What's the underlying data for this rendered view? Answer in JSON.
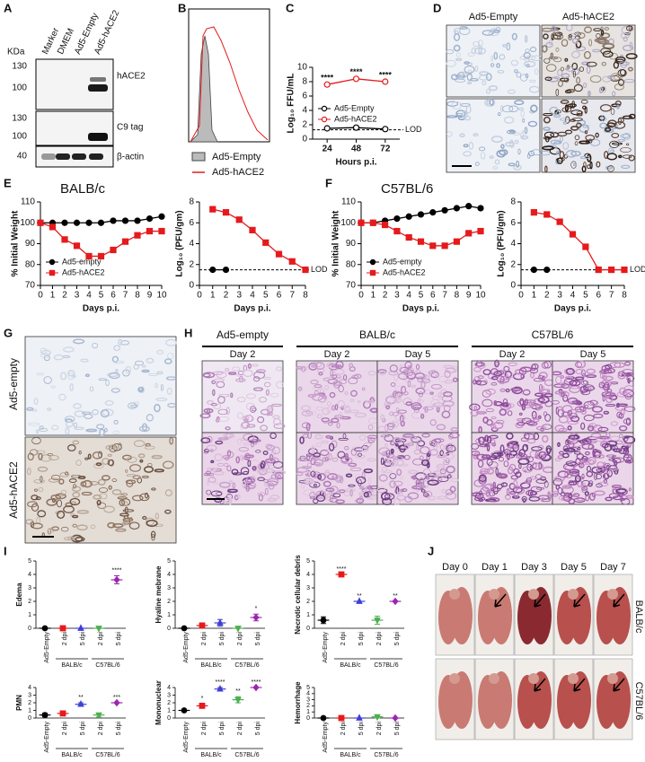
{
  "panel_letters": [
    "A",
    "B",
    "C",
    "D",
    "E",
    "F",
    "G",
    "H",
    "I",
    "J"
  ],
  "panels": {
    "A": {
      "unit": "KDa",
      "lanes": [
        "Marker",
        "DMEM",
        "Ad5-Empty",
        "Ad5-hACE2"
      ],
      "blots": [
        {
          "label": "hACE2",
          "markers": [
            130,
            100
          ]
        },
        {
          "label": "C9 tag",
          "markers": [
            130,
            100
          ]
        },
        {
          "label": "β-actin",
          "markers": [
            40
          ]
        }
      ]
    },
    "B": {
      "legend": [
        "Ad5-Empty",
        "Ad5-hACE2"
      ]
    },
    "D": {
      "columns": [
        "Ad5-Empty",
        "Ad5-hACE2"
      ]
    },
    "G": {
      "rows": [
        "Ad5-empty",
        "Ad5-hACE2"
      ]
    },
    "H": {
      "groups": [
        "Ad5-empty",
        "BALB/c",
        "C57BL/6"
      ],
      "days": [
        "Day 2",
        "Day 2",
        "Day 5",
        "Day 2",
        "Day 5"
      ]
    },
    "J": {
      "days": [
        "Day 0",
        "Day 1",
        "Day 3",
        "Day 5",
        "Day 7"
      ],
      "rows": [
        "BALB/c",
        "C57BL/6"
      ]
    }
  },
  "chart_data": [
    {
      "type": "line",
      "ylabel": "Log₁₀ FFU/mL",
      "xlabel": "Hours p.i.",
      "x": [
        24,
        48,
        72
      ],
      "xlim": [
        12,
        84
      ],
      "xticks": [
        24,
        48,
        72
      ],
      "ylim": [
        0,
        10
      ],
      "yticks": [
        0,
        2,
        4,
        6,
        8,
        10
      ],
      "legend": "center-left",
      "series": [
        {
          "name": "Ad5-Empty",
          "color": "#000000",
          "marker": "open-circle",
          "values": [
            1.5,
            1.6,
            1.4
          ]
        },
        {
          "name": "Ad5-hACE2",
          "color": "#e41a1c",
          "marker": "open-circle",
          "values": [
            7.6,
            8.4,
            8.0
          ],
          "significance": [
            "****",
            "****",
            "****"
          ]
        }
      ],
      "reference_line": {
        "value": 1.3,
        "label": "LOD"
      }
    },
    {
      "type": "line",
      "title": "BALB/c",
      "ylabel": "% Initial Weight",
      "xlabel": "Days p.i.",
      "x": [
        0,
        1,
        2,
        3,
        4,
        5,
        6,
        7,
        8,
        9,
        10
      ],
      "xlim": [
        0,
        10
      ],
      "xticks": [
        0,
        1,
        2,
        3,
        4,
        5,
        6,
        7,
        8,
        9,
        10
      ],
      "ylim": [
        70,
        110
      ],
      "yticks": [
        70,
        80,
        90,
        100,
        110
      ],
      "legend": "lower-left",
      "series": [
        {
          "name": "Ad5-empty",
          "color": "#000000",
          "marker": "circle",
          "values": [
            100,
            100,
            100,
            100,
            100,
            100,
            101,
            101,
            101,
            102,
            103
          ]
        },
        {
          "name": "Ad5-hACE2",
          "color": "#e41a1c",
          "marker": "square",
          "values": [
            100,
            98,
            92,
            89,
            84,
            84,
            87,
            91,
            94,
            96,
            96
          ]
        }
      ]
    },
    {
      "type": "line",
      "ylabel": "Log₁₀ (PFU/gm)",
      "xlabel": "Days p.i.",
      "xlim": [
        0,
        8
      ],
      "xticks": [
        0,
        1,
        2,
        3,
        4,
        5,
        6,
        7,
        8
      ],
      "ylim": [
        0,
        8
      ],
      "yticks": [
        0,
        2,
        4,
        6,
        8
      ],
      "series": [
        {
          "color": "#000000",
          "marker": "circle",
          "x": [
            1,
            2
          ],
          "values": [
            1.5,
            1.5
          ]
        },
        {
          "color": "#e41a1c",
          "marker": "square",
          "x": [
            1,
            2,
            3,
            4,
            5,
            6,
            7,
            8
          ],
          "values": [
            7.3,
            7.0,
            6.3,
            5.3,
            4.1,
            3.0,
            2.3,
            1.5
          ]
        }
      ],
      "reference_line": {
        "value": 1.5,
        "label": "LOD"
      }
    },
    {
      "type": "line",
      "title": "C57BL/6",
      "ylabel": "% Initial Weight",
      "xlabel": "Days p.i.",
      "x": [
        0,
        1,
        2,
        3,
        4,
        5,
        6,
        7,
        8,
        9,
        10
      ],
      "xlim": [
        0,
        10
      ],
      "xticks": [
        0,
        1,
        2,
        3,
        4,
        5,
        6,
        7,
        8,
        9,
        10
      ],
      "ylim": [
        70,
        110
      ],
      "yticks": [
        70,
        80,
        90,
        100,
        110
      ],
      "legend": "lower-left",
      "series": [
        {
          "name": "Ad5-empty",
          "color": "#000000",
          "marker": "circle",
          "values": [
            100,
            100,
            101,
            102,
            103,
            104,
            105,
            106,
            107,
            108,
            107
          ]
        },
        {
          "name": "Ad5-hACE2",
          "color": "#e41a1c",
          "marker": "square",
          "values": [
            100,
            100,
            99,
            96,
            93,
            91,
            89,
            89,
            91,
            95,
            96
          ]
        }
      ]
    },
    {
      "type": "line",
      "ylabel": "Log₁₀ (PFU/gm)",
      "xlabel": "Days p.i.",
      "xlim": [
        0,
        8
      ],
      "xticks": [
        0,
        1,
        2,
        3,
        4,
        5,
        6,
        7,
        8
      ],
      "ylim": [
        0,
        8
      ],
      "yticks": [
        0,
        2,
        4,
        6,
        8
      ],
      "series": [
        {
          "color": "#000000",
          "marker": "circle",
          "x": [
            1,
            2
          ],
          "values": [
            1.5,
            1.5
          ]
        },
        {
          "color": "#e41a1c",
          "marker": "square",
          "x": [
            1,
            2,
            3,
            4,
            5,
            6,
            7,
            8
          ],
          "values": [
            7.0,
            6.8,
            6.1,
            4.9,
            3.7,
            1.5,
            1.5,
            1.5
          ]
        }
      ],
      "reference_line": {
        "value": 1.5,
        "label": "LOD"
      }
    },
    {
      "type": "dot",
      "ylabel": "Edema",
      "categories": [
        "Ad5-Empty",
        "2 dpi",
        "5 dpi",
        "2 dpi",
        "5 dpi"
      ],
      "groups": [
        "BALB/c",
        "C57BL/6"
      ],
      "colors": [
        "#000000",
        "#e41a1c",
        "#3f3fd8",
        "#4caf50",
        "#9c27b0"
      ],
      "markers": [
        "circle",
        "square",
        "triangle",
        "triangle-down",
        "diamond"
      ],
      "ylim": [
        0,
        5
      ],
      "yticks": [
        0,
        1,
        2,
        3,
        4,
        5
      ],
      "values": [
        0,
        0,
        0,
        0,
        3.6
      ],
      "errors": [
        0,
        0,
        0,
        0,
        0.3
      ],
      "significance": [
        null,
        null,
        null,
        null,
        "****"
      ]
    },
    {
      "type": "dot",
      "ylabel": "Hyaline mebrane",
      "categories": [
        "Ad5-Empty",
        "2 dpi",
        "5 dpi",
        "2 dpi",
        "5 dpi"
      ],
      "groups": [
        "BALB/c",
        "C57BL/6"
      ],
      "colors": [
        "#000000",
        "#e41a1c",
        "#3f3fd8",
        "#4caf50",
        "#9c27b0"
      ],
      "markers": [
        "circle",
        "square",
        "triangle",
        "triangle-down",
        "diamond"
      ],
      "ylim": [
        0,
        5
      ],
      "yticks": [
        0,
        1,
        2,
        3,
        4,
        5
      ],
      "values": [
        0,
        0.2,
        0.4,
        0,
        0.8
      ],
      "errors": [
        0,
        0.2,
        0.25,
        0,
        0.25
      ],
      "significance": [
        null,
        null,
        null,
        null,
        "*"
      ]
    },
    {
      "type": "dot",
      "ylabel": "Necrotic cellular debris",
      "categories": [
        "Ad5-Empty",
        "2 dpi",
        "5 dpi",
        "2 dpi",
        "5 dpi"
      ],
      "groups": [
        "BALB/c",
        "C57BL/6"
      ],
      "colors": [
        "#000000",
        "#e41a1c",
        "#3f3fd8",
        "#4caf50",
        "#9c27b0"
      ],
      "markers": [
        "circle",
        "square",
        "triangle",
        "triangle-down",
        "diamond"
      ],
      "ylim": [
        0,
        5
      ],
      "yticks": [
        0,
        1,
        2,
        3,
        4,
        5
      ],
      "values": [
        0.6,
        4,
        2,
        0.6,
        2
      ],
      "errors": [
        0.25,
        0,
        0,
        0.3,
        0
      ],
      "significance": [
        null,
        "****",
        "**",
        null,
        "**"
      ]
    },
    {
      "type": "dot",
      "ylabel": "PMN",
      "categories": [
        "Ad5-Empty",
        "2 dpi",
        "5 dpi",
        "2 dpi",
        "5 dpi"
      ],
      "groups": [
        "BALB/c",
        "C57BL/6"
      ],
      "colors": [
        "#000000",
        "#e41a1c",
        "#3f3fd8",
        "#4caf50",
        "#9c27b0"
      ],
      "markers": [
        "circle",
        "square",
        "triangle",
        "triangle-down",
        "diamond"
      ],
      "ylim": [
        0,
        4
      ],
      "yticks": [
        0,
        1,
        2,
        3,
        4
      ],
      "values": [
        0.4,
        0.6,
        1.8,
        0.4,
        2
      ],
      "errors": [
        0.25,
        0.25,
        0.2,
        0.25,
        0
      ],
      "significance": [
        null,
        null,
        "**",
        null,
        "***"
      ]
    },
    {
      "type": "dot",
      "ylabel": "Mononuclear",
      "categories": [
        "Ad5-Empty",
        "2 dpi",
        "5 dpi",
        "2 dpi",
        "5 dpi"
      ],
      "groups": [
        "BALB/c",
        "C57BL/6"
      ],
      "colors": [
        "#000000",
        "#e41a1c",
        "#3f3fd8",
        "#4caf50",
        "#9c27b0"
      ],
      "markers": [
        "circle",
        "square",
        "triangle",
        "triangle-down",
        "diamond"
      ],
      "ylim": [
        0,
        4
      ],
      "yticks": [
        0,
        1,
        2,
        3,
        4
      ],
      "values": [
        1,
        1.6,
        3.8,
        2.4,
        4
      ],
      "errors": [
        0,
        0.25,
        0.2,
        0.4,
        0
      ],
      "significance": [
        null,
        "*",
        "****",
        "**",
        "****"
      ]
    },
    {
      "type": "dot",
      "ylabel": "Hemorrhage",
      "categories": [
        "Ad5-Empty",
        "2 dpi",
        "5 dpi",
        "2 dpi",
        "5 dpi"
      ],
      "groups": [
        "BALB/c",
        "C57BL/6"
      ],
      "colors": [
        "#000000",
        "#e41a1c",
        "#3f3fd8",
        "#4caf50",
        "#9c27b0"
      ],
      "markers": [
        "circle",
        "square",
        "triangle",
        "triangle-down",
        "diamond"
      ],
      "ylim": [
        0,
        5
      ],
      "yticks": [
        0,
        1,
        2,
        3,
        4,
        5
      ],
      "values": [
        0,
        0,
        0,
        0.2,
        0
      ],
      "errors": [
        0,
        0,
        0,
        0.2,
        0
      ],
      "significance": [
        null,
        null,
        null,
        null,
        null
      ]
    }
  ]
}
